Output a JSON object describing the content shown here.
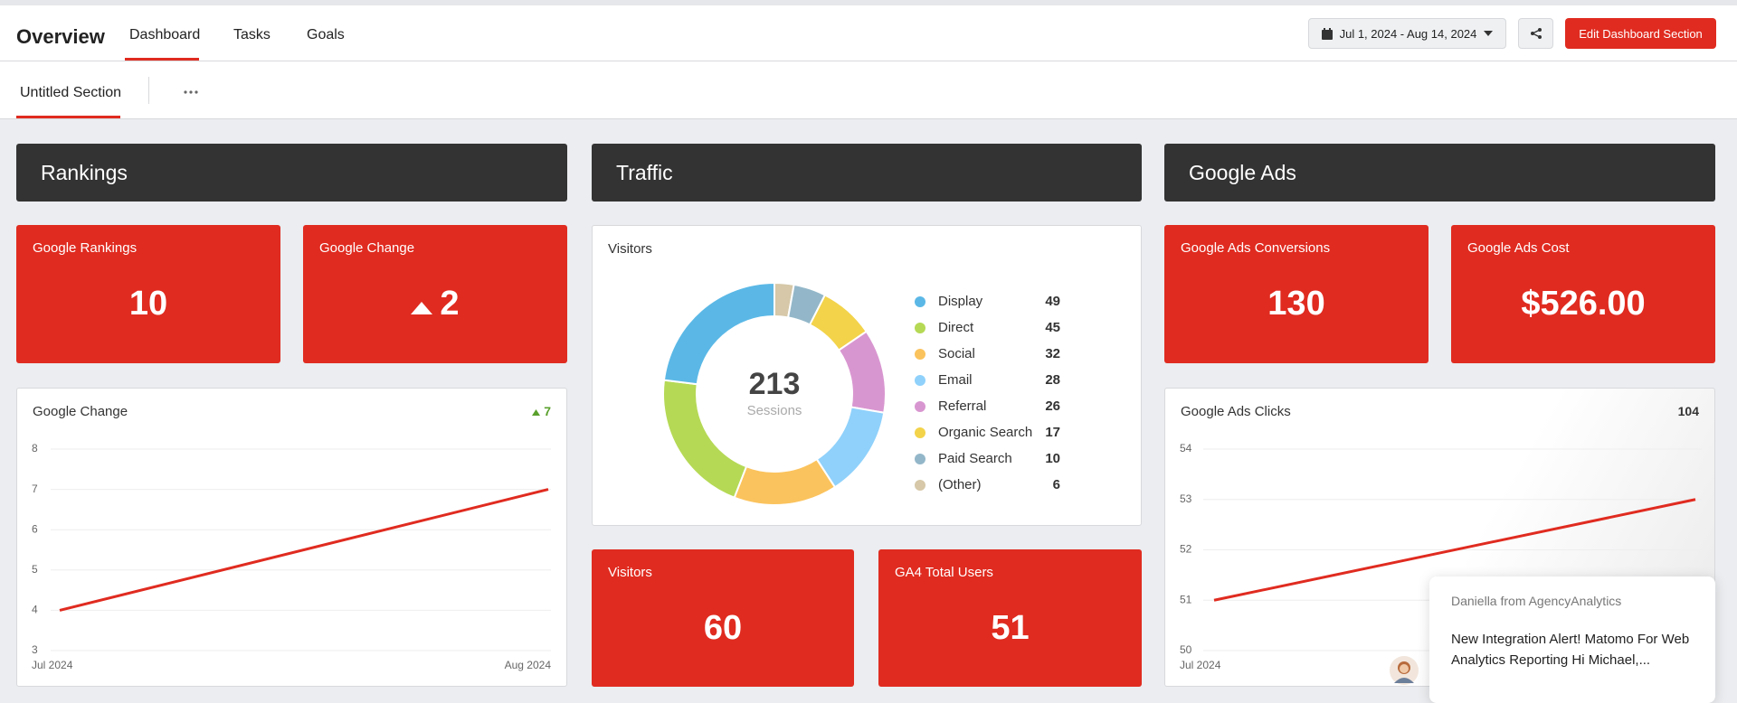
{
  "header": {
    "title": "Overview",
    "tabs": [
      "Dashboard",
      "Tasks",
      "Goals"
    ],
    "date_range": "Jul 1, 2024 - Aug 14, 2024",
    "edit_button": "Edit Dashboard Section"
  },
  "section_tab": "Untitled Section",
  "rankings": {
    "title": "Rankings",
    "kpis": [
      {
        "label": "Google Rankings",
        "value": 10
      },
      {
        "label": "Google Change",
        "value": 2
      }
    ],
    "chart": {
      "type": "line",
      "title": "Google Change",
      "summary": 7,
      "x": [
        "Jul 2024",
        "Aug 2024"
      ],
      "values": [
        4,
        7
      ],
      "ylim": [
        3,
        8
      ],
      "yticks": [
        3,
        4,
        5,
        6,
        7,
        8
      ],
      "color": "#e02b20",
      "grid": true
    }
  },
  "traffic": {
    "title": "Traffic",
    "chart": {
      "type": "pie",
      "title": "Visitors",
      "total": 213,
      "total_label": "Sessions",
      "categories": [
        "Display",
        "Direct",
        "Social",
        "Email",
        "Referral",
        "Organic Search",
        "Paid Search",
        "(Other)"
      ],
      "values": [
        49,
        45,
        32,
        28,
        26,
        17,
        10,
        6
      ],
      "colors": [
        "#5bb8e6",
        "#b5d955",
        "#fbc35d",
        "#8fd1fb",
        "#d896d0",
        "#f3d34a",
        "#93b7c9",
        "#d6c8a8"
      ]
    },
    "kpis": [
      {
        "label": "Visitors",
        "value": 60
      },
      {
        "label": "GA4 Total Users",
        "value": 51
      }
    ]
  },
  "google_ads": {
    "title": "Google Ads",
    "kpis": [
      {
        "label": "Google Ads Conversions",
        "value": 130
      },
      {
        "label": "Google Ads Cost",
        "value": "$526.00"
      }
    ],
    "chart": {
      "type": "line",
      "title": "Google Ads Clicks",
      "summary": 104,
      "x": [
        "Jul 2024",
        null
      ],
      "values": [
        51,
        53
      ],
      "ylim": [
        50,
        54
      ],
      "yticks": [
        50,
        51,
        52,
        53,
        54
      ],
      "color": "#e02b20",
      "grid": true
    }
  },
  "chat": {
    "sender": "Daniella from AgencyAnalytics",
    "message": "New Integration Alert! Matomo For Web Analytics Reporting Hi Michael,..."
  }
}
